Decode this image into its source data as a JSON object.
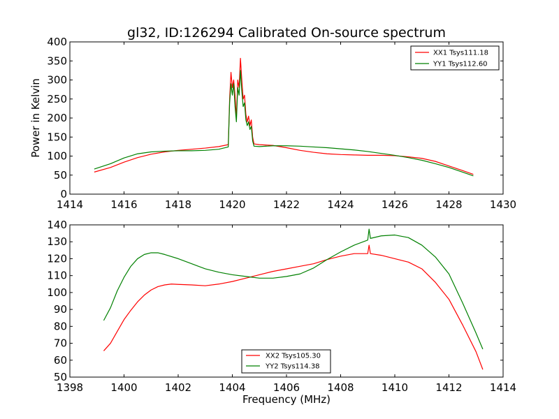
{
  "title": "gl32, ID:126294 Calibrated On-source spectrum",
  "xlabel": "Frequency (MHz)",
  "colors": {
    "red": "#ff0000",
    "green": "#008000",
    "axis": "#000000",
    "background": "#ffffff"
  },
  "chart_data": [
    {
      "type": "line",
      "title": "gl32, ID:126294 Calibrated On-source spectrum",
      "xlabel": "",
      "ylabel": "Power in Kelvin",
      "xlim": [
        1414,
        1430
      ],
      "ylim": [
        0,
        400
      ],
      "xticks": [
        "1414",
        "1416",
        "1418",
        "1420",
        "1422",
        "1424",
        "1426",
        "1428",
        "1430"
      ],
      "yticks": [
        "0",
        "50",
        "100",
        "150",
        "200",
        "250",
        "300",
        "350",
        "400"
      ],
      "grid": false,
      "legend": "top-right",
      "series": [
        {
          "name": "XX1 Tsys111.18",
          "color": "#ff0000",
          "points": [
            [
              1414.9,
              58
            ],
            [
              1415.5,
              70
            ],
            [
              1416,
              84
            ],
            [
              1416.5,
              96
            ],
            [
              1417,
              105
            ],
            [
              1417.5,
              111
            ],
            [
              1418,
              115
            ],
            [
              1418.5,
              118
            ],
            [
              1419,
              121
            ],
            [
              1419.5,
              125
            ],
            [
              1419.85,
              130
            ],
            [
              1419.9,
              250
            ],
            [
              1419.95,
              320
            ],
            [
              1420.0,
              280
            ],
            [
              1420.05,
              300
            ],
            [
              1420.1,
              260
            ],
            [
              1420.15,
              200
            ],
            [
              1420.2,
              300
            ],
            [
              1420.25,
              280
            ],
            [
              1420.3,
              357
            ],
            [
              1420.35,
              300
            ],
            [
              1420.4,
              250
            ],
            [
              1420.45,
              260
            ],
            [
              1420.5,
              210
            ],
            [
              1420.55,
              190
            ],
            [
              1420.6,
              205
            ],
            [
              1420.65,
              180
            ],
            [
              1420.7,
              195
            ],
            [
              1420.75,
              150
            ],
            [
              1420.8,
              132
            ],
            [
              1421,
              130
            ],
            [
              1421.5,
              128
            ],
            [
              1422,
              122
            ],
            [
              1422.5,
              115
            ],
            [
              1423,
              110
            ],
            [
              1423.5,
              106
            ],
            [
              1424,
              104
            ],
            [
              1424.5,
              103
            ],
            [
              1425,
              102
            ],
            [
              1425.5,
              102
            ],
            [
              1426,
              101
            ],
            [
              1426.5,
              98
            ],
            [
              1427,
              94
            ],
            [
              1427.5,
              86
            ],
            [
              1428,
              74
            ],
            [
              1428.5,
              62
            ],
            [
              1428.9,
              52
            ]
          ]
        },
        {
          "name": "YY1 Tsys112.60",
          "color": "#008000",
          "points": [
            [
              1414.9,
              66
            ],
            [
              1415.5,
              80
            ],
            [
              1416,
              95
            ],
            [
              1416.5,
              106
            ],
            [
              1417,
              111
            ],
            [
              1417.5,
              113
            ],
            [
              1418,
              114
            ],
            [
              1418.5,
              114
            ],
            [
              1419,
              115
            ],
            [
              1419.5,
              118
            ],
            [
              1419.85,
              124
            ],
            [
              1419.9,
              240
            ],
            [
              1419.95,
              290
            ],
            [
              1420.0,
              260
            ],
            [
              1420.05,
              290
            ],
            [
              1420.1,
              230
            ],
            [
              1420.15,
              190
            ],
            [
              1420.2,
              280
            ],
            [
              1420.25,
              260
            ],
            [
              1420.3,
              325
            ],
            [
              1420.35,
              270
            ],
            [
              1420.4,
              230
            ],
            [
              1420.45,
              240
            ],
            [
              1420.5,
              195
            ],
            [
              1420.55,
              180
            ],
            [
              1420.6,
              190
            ],
            [
              1420.65,
              170
            ],
            [
              1420.7,
              178
            ],
            [
              1420.75,
              140
            ],
            [
              1420.8,
              126
            ],
            [
              1421,
              125
            ],
            [
              1421.5,
              127
            ],
            [
              1422,
              127
            ],
            [
              1422.5,
              126
            ],
            [
              1423,
              124
            ],
            [
              1423.5,
              122
            ],
            [
              1424,
              119
            ],
            [
              1424.5,
              116
            ],
            [
              1425,
              112
            ],
            [
              1425.5,
              107
            ],
            [
              1426,
              102
            ],
            [
              1426.5,
              96
            ],
            [
              1427,
              89
            ],
            [
              1427.5,
              80
            ],
            [
              1428,
              70
            ],
            [
              1428.5,
              58
            ],
            [
              1428.9,
              48
            ]
          ]
        }
      ]
    },
    {
      "type": "line",
      "title": "",
      "xlabel": "Frequency (MHz)",
      "ylabel": "",
      "xlim": [
        1398,
        1414
      ],
      "ylim": [
        50,
        140
      ],
      "xticks": [
        "1398",
        "1400",
        "1402",
        "1404",
        "1406",
        "1408",
        "1410",
        "1412",
        "1414"
      ],
      "yticks": [
        "50",
        "60",
        "70",
        "80",
        "90",
        "100",
        "110",
        "120",
        "130",
        "140"
      ],
      "grid": false,
      "legend": "bottom-center",
      "series": [
        {
          "name": "XX2 Tsys105.30",
          "color": "#ff0000",
          "points": [
            [
              1399.25,
              65.5
            ],
            [
              1399.5,
              70
            ],
            [
              1399.75,
              77
            ],
            [
              1400,
              84
            ],
            [
              1400.25,
              89.5
            ],
            [
              1400.5,
              94.5
            ],
            [
              1400.75,
              98.5
            ],
            [
              1401,
              101.5
            ],
            [
              1401.25,
              103.5
            ],
            [
              1401.5,
              104.5
            ],
            [
              1401.75,
              105
            ],
            [
              1402,
              104.8
            ],
            [
              1402.5,
              104.5
            ],
            [
              1403,
              104
            ],
            [
              1403.5,
              105
            ],
            [
              1404,
              106.5
            ],
            [
              1404.5,
              108.5
            ],
            [
              1405,
              110.5
            ],
            [
              1405.5,
              112.5
            ],
            [
              1406,
              114
            ],
            [
              1406.5,
              115.5
            ],
            [
              1407,
              117
            ],
            [
              1407.5,
              119.5
            ],
            [
              1408,
              121.5
            ],
            [
              1408.5,
              123
            ],
            [
              1409,
              123
            ],
            [
              1409.05,
              128
            ],
            [
              1409.1,
              123
            ],
            [
              1409.5,
              122
            ],
            [
              1410,
              120
            ],
            [
              1410.5,
              118
            ],
            [
              1411,
              114
            ],
            [
              1411.5,
              106
            ],
            [
              1412,
              96
            ],
            [
              1412.5,
              81
            ],
            [
              1413,
              65
            ],
            [
              1413.25,
              54.5
            ]
          ]
        },
        {
          "name": "YY2 Tsys114.38",
          "color": "#008000",
          "points": [
            [
              1399.25,
              83.5
            ],
            [
              1399.5,
              91
            ],
            [
              1399.75,
              101
            ],
            [
              1400,
              109
            ],
            [
              1400.25,
              115.5
            ],
            [
              1400.5,
              120
            ],
            [
              1400.75,
              122.5
            ],
            [
              1401,
              123.5
            ],
            [
              1401.25,
              123.5
            ],
            [
              1401.5,
              122.5
            ],
            [
              1402,
              120
            ],
            [
              1402.5,
              117
            ],
            [
              1403,
              114
            ],
            [
              1403.5,
              112
            ],
            [
              1404,
              110.5
            ],
            [
              1404.5,
              109.5
            ],
            [
              1405,
              108.5
            ],
            [
              1405.5,
              108.5
            ],
            [
              1406,
              109.5
            ],
            [
              1406.5,
              111
            ],
            [
              1407,
              114.5
            ],
            [
              1407.5,
              119.5
            ],
            [
              1408,
              124
            ],
            [
              1408.5,
              128
            ],
            [
              1409,
              131
            ],
            [
              1409.05,
              137.5
            ],
            [
              1409.1,
              132
            ],
            [
              1409.5,
              133.5
            ],
            [
              1410,
              134
            ],
            [
              1410.5,
              132.5
            ],
            [
              1411,
              128
            ],
            [
              1411.5,
              121
            ],
            [
              1412,
              111
            ],
            [
              1412.5,
              94
            ],
            [
              1413,
              76
            ],
            [
              1413.25,
              66.5
            ]
          ]
        }
      ]
    }
  ]
}
